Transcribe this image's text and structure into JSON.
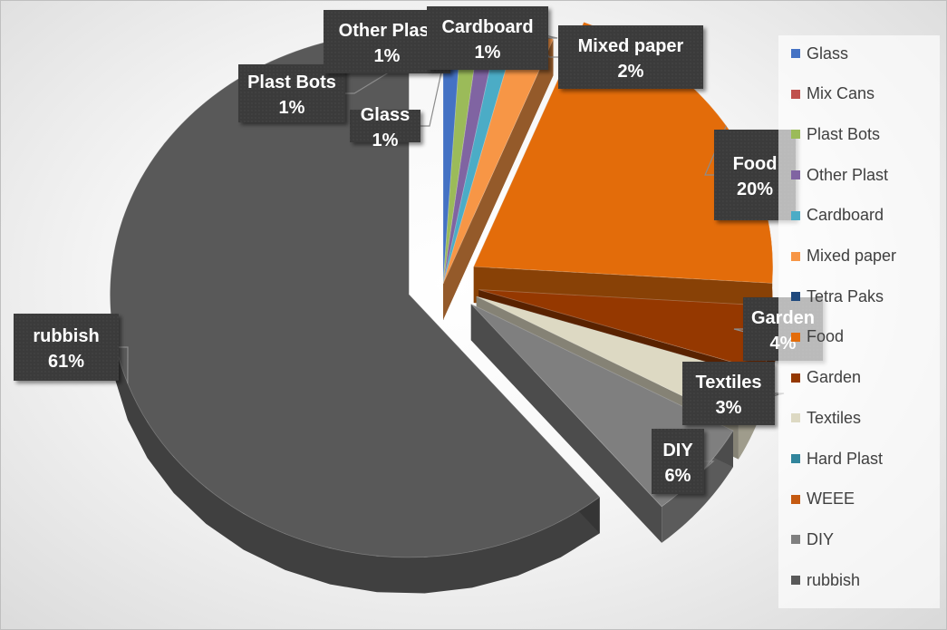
{
  "chart_data": {
    "type": "pie",
    "variant": "3d-exploded",
    "categories": [
      "Glass",
      "Mix Cans",
      "Plast Bots",
      "Other Plast",
      "Cardboard",
      "Mixed paper",
      "Tetra Paks",
      "Food",
      "Garden",
      "Textiles",
      "Hard Plast",
      "WEEE",
      "DIY",
      "rubbish"
    ],
    "values": [
      1,
      0,
      1,
      1,
      1,
      2,
      0,
      20,
      4,
      3,
      0,
      0,
      6,
      61
    ],
    "colors": [
      "#4472C4",
      "#C0504D",
      "#9BBB59",
      "#8064A2",
      "#4BACC6",
      "#F79646",
      "#1F497D",
      "#E36C0A",
      "#953800",
      "#DDD9C3",
      "#31859C",
      "#C55A11",
      "#7F7F7F",
      "#595959"
    ],
    "data_labels": [
      {
        "category": "Glass",
        "name": "Glass",
        "value": "1%"
      },
      {
        "category": "Plast Bots",
        "name": "Plast Bots",
        "value": "1%"
      },
      {
        "category": "Other Plast",
        "name": "Other Plast",
        "value": "1%"
      },
      {
        "category": "Cardboard",
        "name": "Cardboard",
        "value": "1%"
      },
      {
        "category": "Mixed paper",
        "name": "Mixed paper",
        "value": "2%"
      },
      {
        "category": "Food",
        "name": "Food",
        "value": "20%"
      },
      {
        "category": "Garden",
        "name": "Garden",
        "value": "4%"
      },
      {
        "category": "Textiles",
        "name": "Textiles",
        "value": "3%"
      },
      {
        "category": "DIY",
        "name": "DIY",
        "value": "6%"
      },
      {
        "category": "rubbish",
        "name": "rubbish",
        "value": "61%"
      }
    ],
    "legend_position": "right",
    "title": ""
  }
}
